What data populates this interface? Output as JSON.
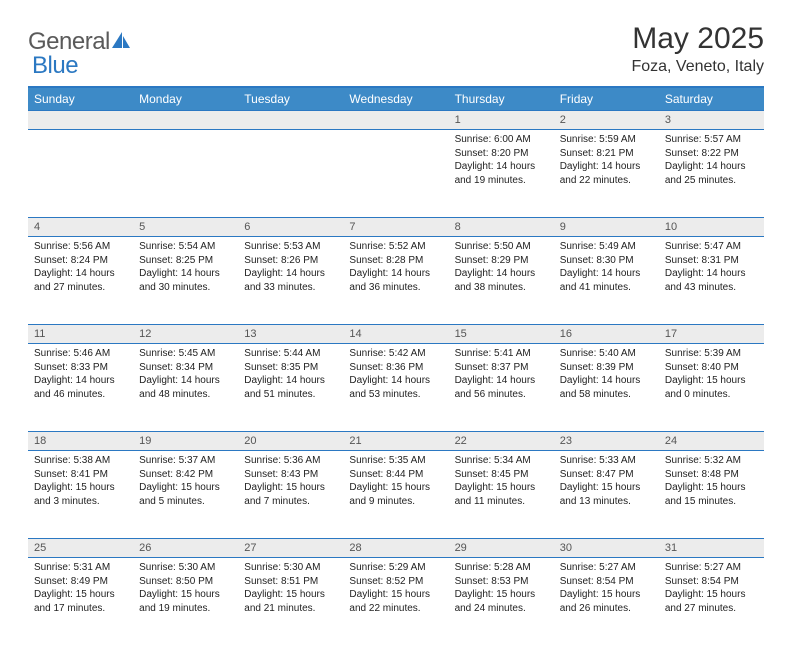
{
  "logo": {
    "text1": "General",
    "text2": "Blue"
  },
  "title": "May 2025",
  "subtitle": "Foza, Veneto, Italy",
  "colors": {
    "header_bg": "#3d8ac7",
    "border": "#2b78c2",
    "daynum_bg": "#ececec",
    "text": "#222222"
  },
  "day_headers": [
    "Sunday",
    "Monday",
    "Tuesday",
    "Wednesday",
    "Thursday",
    "Friday",
    "Saturday"
  ],
  "weeks": [
    [
      null,
      null,
      null,
      null,
      {
        "n": "1",
        "sunrise": "6:00 AM",
        "sunset": "8:20 PM",
        "daylight": "14 hours and 19 minutes."
      },
      {
        "n": "2",
        "sunrise": "5:59 AM",
        "sunset": "8:21 PM",
        "daylight": "14 hours and 22 minutes."
      },
      {
        "n": "3",
        "sunrise": "5:57 AM",
        "sunset": "8:22 PM",
        "daylight": "14 hours and 25 minutes."
      }
    ],
    [
      {
        "n": "4",
        "sunrise": "5:56 AM",
        "sunset": "8:24 PM",
        "daylight": "14 hours and 27 minutes."
      },
      {
        "n": "5",
        "sunrise": "5:54 AM",
        "sunset": "8:25 PM",
        "daylight": "14 hours and 30 minutes."
      },
      {
        "n": "6",
        "sunrise": "5:53 AM",
        "sunset": "8:26 PM",
        "daylight": "14 hours and 33 minutes."
      },
      {
        "n": "7",
        "sunrise": "5:52 AM",
        "sunset": "8:28 PM",
        "daylight": "14 hours and 36 minutes."
      },
      {
        "n": "8",
        "sunrise": "5:50 AM",
        "sunset": "8:29 PM",
        "daylight": "14 hours and 38 minutes."
      },
      {
        "n": "9",
        "sunrise": "5:49 AM",
        "sunset": "8:30 PM",
        "daylight": "14 hours and 41 minutes."
      },
      {
        "n": "10",
        "sunrise": "5:47 AM",
        "sunset": "8:31 PM",
        "daylight": "14 hours and 43 minutes."
      }
    ],
    [
      {
        "n": "11",
        "sunrise": "5:46 AM",
        "sunset": "8:33 PM",
        "daylight": "14 hours and 46 minutes."
      },
      {
        "n": "12",
        "sunrise": "5:45 AM",
        "sunset": "8:34 PM",
        "daylight": "14 hours and 48 minutes."
      },
      {
        "n": "13",
        "sunrise": "5:44 AM",
        "sunset": "8:35 PM",
        "daylight": "14 hours and 51 minutes."
      },
      {
        "n": "14",
        "sunrise": "5:42 AM",
        "sunset": "8:36 PM",
        "daylight": "14 hours and 53 minutes."
      },
      {
        "n": "15",
        "sunrise": "5:41 AM",
        "sunset": "8:37 PM",
        "daylight": "14 hours and 56 minutes."
      },
      {
        "n": "16",
        "sunrise": "5:40 AM",
        "sunset": "8:39 PM",
        "daylight": "14 hours and 58 minutes."
      },
      {
        "n": "17",
        "sunrise": "5:39 AM",
        "sunset": "8:40 PM",
        "daylight": "15 hours and 0 minutes."
      }
    ],
    [
      {
        "n": "18",
        "sunrise": "5:38 AM",
        "sunset": "8:41 PM",
        "daylight": "15 hours and 3 minutes."
      },
      {
        "n": "19",
        "sunrise": "5:37 AM",
        "sunset": "8:42 PM",
        "daylight": "15 hours and 5 minutes."
      },
      {
        "n": "20",
        "sunrise": "5:36 AM",
        "sunset": "8:43 PM",
        "daylight": "15 hours and 7 minutes."
      },
      {
        "n": "21",
        "sunrise": "5:35 AM",
        "sunset": "8:44 PM",
        "daylight": "15 hours and 9 minutes."
      },
      {
        "n": "22",
        "sunrise": "5:34 AM",
        "sunset": "8:45 PM",
        "daylight": "15 hours and 11 minutes."
      },
      {
        "n": "23",
        "sunrise": "5:33 AM",
        "sunset": "8:47 PM",
        "daylight": "15 hours and 13 minutes."
      },
      {
        "n": "24",
        "sunrise": "5:32 AM",
        "sunset": "8:48 PM",
        "daylight": "15 hours and 15 minutes."
      }
    ],
    [
      {
        "n": "25",
        "sunrise": "5:31 AM",
        "sunset": "8:49 PM",
        "daylight": "15 hours and 17 minutes."
      },
      {
        "n": "26",
        "sunrise": "5:30 AM",
        "sunset": "8:50 PM",
        "daylight": "15 hours and 19 minutes."
      },
      {
        "n": "27",
        "sunrise": "5:30 AM",
        "sunset": "8:51 PM",
        "daylight": "15 hours and 21 minutes."
      },
      {
        "n": "28",
        "sunrise": "5:29 AM",
        "sunset": "8:52 PM",
        "daylight": "15 hours and 22 minutes."
      },
      {
        "n": "29",
        "sunrise": "5:28 AM",
        "sunset": "8:53 PM",
        "daylight": "15 hours and 24 minutes."
      },
      {
        "n": "30",
        "sunrise": "5:27 AM",
        "sunset": "8:54 PM",
        "daylight": "15 hours and 26 minutes."
      },
      {
        "n": "31",
        "sunrise": "5:27 AM",
        "sunset": "8:54 PM",
        "daylight": "15 hours and 27 minutes."
      }
    ]
  ],
  "labels": {
    "sunrise": "Sunrise:",
    "sunset": "Sunset:",
    "daylight": "Daylight:"
  }
}
